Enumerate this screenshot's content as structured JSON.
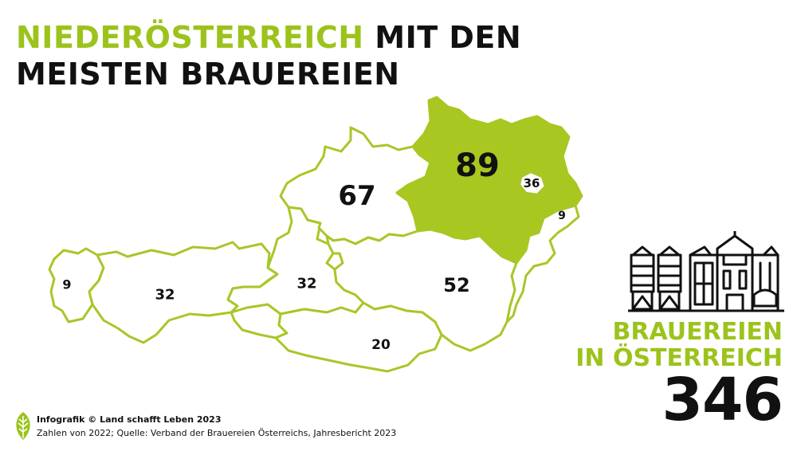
{
  "title": {
    "highlight": "NIEDERÖSTERREICH",
    "rest_line1": "MIT DEN",
    "line2": "MEISTEN BRAUEREIEN"
  },
  "colors": {
    "accent": "#9cc31c",
    "highlight_fill": "#a8c720",
    "text": "#111111",
    "border": "#a7c728"
  },
  "map": {
    "regions": [
      {
        "id": "vorarlberg",
        "count": "9"
      },
      {
        "id": "tirol",
        "count": "32"
      },
      {
        "id": "salzburg",
        "count": "32"
      },
      {
        "id": "oberoesterreich",
        "count": "67"
      },
      {
        "id": "niederoesterreich",
        "count": "89",
        "highlighted": true
      },
      {
        "id": "wien",
        "count": "36"
      },
      {
        "id": "burgenland",
        "count": "9"
      },
      {
        "id": "steiermark",
        "count": "52"
      },
      {
        "id": "kaernten",
        "count": "20"
      }
    ]
  },
  "total": {
    "label_line1": "BRAUEREIEN",
    "label_line2": "IN ÖSTERREICH",
    "value": "346"
  },
  "footer": {
    "icon": "leaf-icon",
    "credit": "Infografik © Land schafft Leben 2023",
    "source": "Zahlen von 2022; Quelle: Verband der Brauereien Österreichs, Jahresbericht 2023"
  }
}
